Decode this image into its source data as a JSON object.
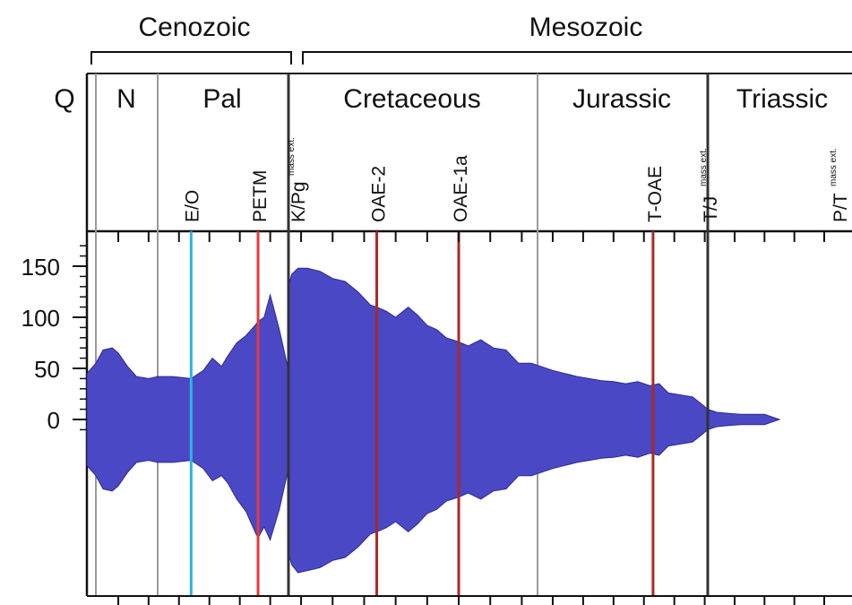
{
  "chart_data": {
    "type": "area",
    "title": "",
    "xlabel": "",
    "ylabel": "",
    "eras": [
      {
        "label": "Cenozoic",
        "start": 0,
        "end": 66
      },
      {
        "label": "Mesozoic",
        "start": 66,
        "end": 252
      }
    ],
    "periods": [
      {
        "label": "Q",
        "start": 0,
        "end": 2.6
      },
      {
        "label": "N",
        "start": 2.6,
        "end": 23
      },
      {
        "label": "Pal",
        "start": 23,
        "end": 66
      },
      {
        "label": "Cretaceous",
        "start": 66,
        "end": 145
      },
      {
        "label": "Jurassic",
        "start": 145,
        "end": 201
      },
      {
        "label": "Triassic",
        "start": 201,
        "end": 252
      }
    ],
    "events": [
      {
        "label": "E/O",
        "age": 34,
        "color": "#2ab4e8",
        "mass_ext": false
      },
      {
        "label": "PETM",
        "age": 56,
        "color": "#e8383a",
        "mass_ext": false
      },
      {
        "label": "K/Pg",
        "age": 66,
        "color": "#222222",
        "mass_ext": true
      },
      {
        "label": "OAE-2",
        "age": 94,
        "color": "#a82a2a",
        "mass_ext": false
      },
      {
        "label": "OAE-1a",
        "age": 120,
        "color": "#a82a2a",
        "mass_ext": false
      },
      {
        "label": "T-OAE",
        "age": 183,
        "color": "#a82a2a",
        "mass_ext": false
      },
      {
        "label": "T/J",
        "age": 201,
        "color": "#222222",
        "mass_ext": true
      },
      {
        "label": "P/T",
        "age": 252,
        "color": "#222222",
        "mass_ext": true
      }
    ],
    "mass_ext_label": "mass ext.",
    "yticks": [
      0,
      50,
      100,
      150
    ],
    "ylim": [
      -160,
      190
    ],
    "xlim": [
      0,
      252
    ],
    "series": [
      {
        "color": "#4a48c4",
        "age": [
          0,
          2.6,
          5,
          8,
          10,
          13,
          16,
          20,
          23,
          28,
          34,
          38,
          41,
          44,
          46,
          49,
          52,
          55,
          56,
          58,
          60,
          63,
          66,
          66,
          67,
          69,
          72,
          76,
          80,
          84,
          88,
          92,
          94,
          97,
          100,
          104,
          107,
          110,
          113,
          116,
          120,
          123,
          127,
          131,
          135,
          139,
          143,
          146,
          150,
          154,
          158,
          162,
          166,
          170,
          174,
          178,
          182,
          185,
          188,
          192,
          196,
          199,
          201,
          204,
          208,
          212,
          216,
          220,
          225
        ],
        "upper": [
          45,
          55,
          68,
          70,
          65,
          52,
          42,
          40,
          42,
          42,
          40,
          48,
          60,
          52,
          62,
          75,
          82,
          92,
          96,
          100,
          122,
          88,
          48,
          130,
          142,
          148,
          148,
          145,
          138,
          135,
          125,
          112,
          110,
          106,
          100,
          110,
          102,
          92,
          88,
          80,
          76,
          72,
          78,
          70,
          68,
          55,
          55,
          52,
          48,
          45,
          42,
          40,
          38,
          37,
          35,
          37,
          33,
          35,
          26,
          24,
          22,
          15,
          10,
          7,
          6,
          5,
          5,
          5,
          0
        ],
        "lower": [
          -45,
          -55,
          -68,
          -70,
          -65,
          -52,
          -42,
          -40,
          -42,
          -42,
          -40,
          -48,
          -60,
          -55,
          -62,
          -78,
          -90,
          -110,
          -116,
          -105,
          -118,
          -88,
          -48,
          -130,
          -142,
          -150,
          -148,
          -145,
          -138,
          -135,
          -125,
          -112,
          -110,
          -106,
          -100,
          -110,
          -102,
          -92,
          -88,
          -80,
          -76,
          -72,
          -78,
          -70,
          -68,
          -55,
          -55,
          -52,
          -48,
          -45,
          -42,
          -40,
          -38,
          -37,
          -35,
          -37,
          -33,
          -35,
          -26,
          -24,
          -22,
          -15,
          -10,
          -7,
          -6,
          -5,
          -5,
          -5,
          0
        ]
      }
    ]
  }
}
